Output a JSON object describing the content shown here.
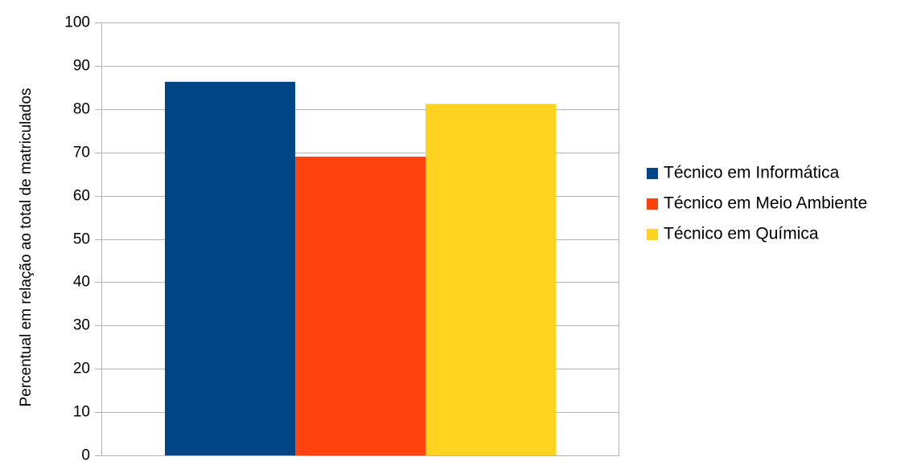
{
  "chart_data": {
    "type": "bar",
    "title": "",
    "xlabel": "",
    "ylabel": "Percentual em relação ao total de matriculados",
    "ylim": [
      0,
      100
    ],
    "yticks": [
      0,
      10,
      20,
      30,
      40,
      50,
      60,
      70,
      80,
      90,
      100
    ],
    "grid": true,
    "legend_position": "right",
    "series": [
      {
        "name": "Técnico em Informática",
        "values": [
          86.3
        ],
        "color": "#004586"
      },
      {
        "name": "Técnico em Meio Ambiente",
        "values": [
          69.0
        ],
        "color": "#ff420e"
      },
      {
        "name": "Técnico em Química",
        "values": [
          81.2
        ],
        "color": "#ffd320"
      }
    ]
  }
}
